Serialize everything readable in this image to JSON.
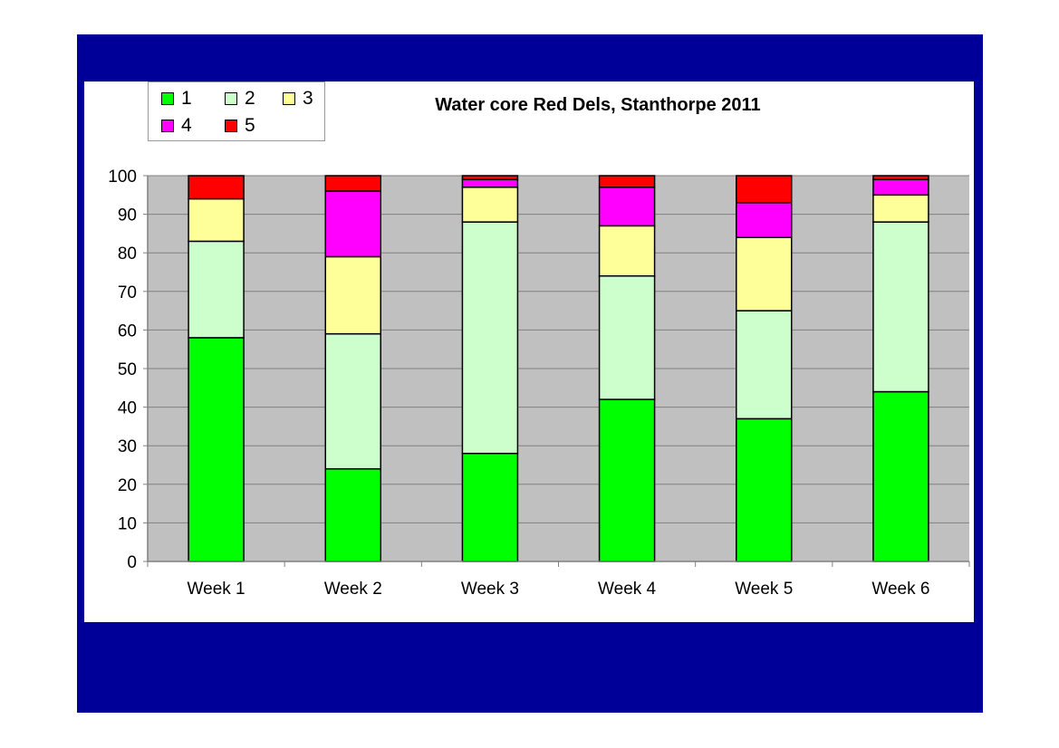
{
  "colors": {
    "frame": "#000099",
    "plot_bg": "#c0c0c0",
    "series": [
      "#00ff00",
      "#ccffcc",
      "#ffff99",
      "#ff00ff",
      "#ff0000"
    ]
  },
  "chart_data": {
    "type": "bar",
    "stacked": true,
    "title": "Water core Red Dels, Stanthorpe 2011",
    "categories": [
      "Week 1",
      "Week 2",
      "Week 3",
      "Week 4",
      "Week 5",
      "Week 6"
    ],
    "yticks": [
      "0",
      "10",
      "20",
      "30",
      "40",
      "50",
      "60",
      "70",
      "80",
      "90",
      "100"
    ],
    "ylim": [
      0,
      100
    ],
    "grid": true,
    "legend_position": "top-left",
    "series": [
      {
        "name": "1",
        "values": [
          58,
          24,
          28,
          42,
          37,
          44
        ]
      },
      {
        "name": "2",
        "values": [
          25,
          35,
          60,
          32,
          28,
          44
        ]
      },
      {
        "name": "3",
        "values": [
          11,
          20,
          9,
          13,
          19,
          7
        ]
      },
      {
        "name": "4",
        "values": [
          0,
          17,
          2,
          10,
          9,
          4
        ]
      },
      {
        "name": "5",
        "values": [
          6,
          4,
          1,
          3,
          7,
          1
        ]
      }
    ]
  }
}
